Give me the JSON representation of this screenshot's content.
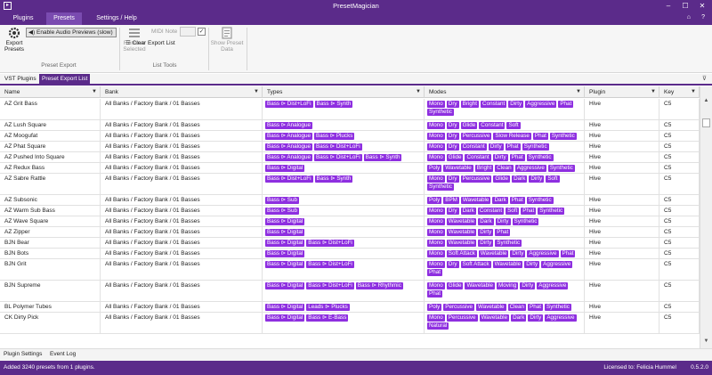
{
  "window": {
    "title": "PresetMagician",
    "app_icon": "pm-logo-icon",
    "controls": [
      "minimize-icon",
      "maximize-icon",
      "close-icon"
    ]
  },
  "menu": {
    "items": [
      "Plugins",
      "Presets",
      "Settings / Help"
    ],
    "active": "Presets",
    "right_icons": [
      "notification-icon",
      "help-icon"
    ]
  },
  "ribbon": {
    "export_presets": "Export\nPresets",
    "enable_previews": "Enable Audio Previews (slow)",
    "group_export": "Preset Export",
    "remove_selected": "Remove\nSelected",
    "midi_note_label": "MIDI Note",
    "midi_note_value": "",
    "clear_export_list": "Clear Export List",
    "group_list_tools": "List Tools",
    "show_preset_data": "Show Preset\nData"
  },
  "tabs": [
    "VST Plugins",
    "Preset Export List"
  ],
  "active_tab": "Preset Export List",
  "columns": [
    "Name",
    "Bank",
    "Types",
    "Modes",
    "Plugin",
    "Key"
  ],
  "rows": [
    {
      "name": "AZ Grit Bass",
      "bank": "All Banks / Factory Bank / 01 Basses",
      "types": [
        "Bass ⊳ Dist+LoFi",
        "Bass ⊳ Synth"
      ],
      "modes": [
        "Mono",
        "Dry",
        "Bright",
        "Constant",
        "Dirty",
        "Aggressive",
        "Phat",
        "Synthetic"
      ],
      "plugin": "Hive",
      "key": "C5"
    },
    {
      "name": "AZ Lush Square",
      "bank": "All Banks / Factory Bank / 01 Basses",
      "types": [
        "Bass ⊳ Analogue"
      ],
      "modes": [
        "Mono",
        "Dry",
        "Glide",
        "Constant",
        "Soft"
      ],
      "plugin": "Hive",
      "key": "C5"
    },
    {
      "name": "AZ Moogufat",
      "bank": "All Banks / Factory Bank / 01 Basses",
      "types": [
        "Bass ⊳ Analogue",
        "Bass ⊳ Plucks"
      ],
      "modes": [
        "Mono",
        "Dry",
        "Percussive",
        "Slow Release",
        "Phat",
        "Synthetic"
      ],
      "plugin": "Hive",
      "key": "C5"
    },
    {
      "name": "AZ Phat Square",
      "bank": "All Banks / Factory Bank / 01 Basses",
      "types": [
        "Bass ⊳ Analogue",
        "Bass ⊳ Dist+LoFi"
      ],
      "modes": [
        "Mono",
        "Dry",
        "Constant",
        "Dirty",
        "Phat",
        "Synthetic"
      ],
      "plugin": "Hive",
      "key": "C5"
    },
    {
      "name": "AZ Pushed Into Square",
      "bank": "All Banks / Factory Bank / 01 Basses",
      "types": [
        "Bass ⊳ Analogue",
        "Bass ⊳ Dist+LoFi",
        "Bass ⊳ Synth"
      ],
      "modes": [
        "Mono",
        "Glide",
        "Constant",
        "Dirty",
        "Phat",
        "Synthetic"
      ],
      "plugin": "Hive",
      "key": "C5"
    },
    {
      "name": "AZ Redux Bass",
      "bank": "All Banks / Factory Bank / 01 Basses",
      "types": [
        "Bass ⊳ Digital"
      ],
      "modes": [
        "Poly",
        "Wavetable",
        "Bright",
        "Clean",
        "Aggressive",
        "Synthetic"
      ],
      "plugin": "Hive",
      "key": "C5"
    },
    {
      "name": "AZ Sabre Rattle",
      "bank": "All Banks / Factory Bank / 01 Basses",
      "types": [
        "Bass ⊳ Dist+LoFi",
        "Bass ⊳ Synth"
      ],
      "modes": [
        "Mono",
        "Dry",
        "Percussive",
        "Glide",
        "Dark",
        "Dirty",
        "Soft",
        "Synthetic"
      ],
      "plugin": "Hive",
      "key": "C5"
    },
    {
      "name": "AZ Subsonic",
      "bank": "All Banks / Factory Bank / 01 Basses",
      "types": [
        "Bass ⊳ Sub"
      ],
      "modes": [
        "Poly",
        "BPM",
        "Wavetable",
        "Dark",
        "Phat",
        "Synthetic"
      ],
      "plugin": "Hive",
      "key": "C5"
    },
    {
      "name": "AZ Warm Sub Bass",
      "bank": "All Banks / Factory Bank / 01 Basses",
      "types": [
        "Bass ⊳ Sub"
      ],
      "modes": [
        "Mono",
        "Dry",
        "Dark",
        "Constant",
        "Soft",
        "Phat",
        "Synthetic"
      ],
      "plugin": "Hive",
      "key": "C5"
    },
    {
      "name": "AZ Wave Square",
      "bank": "All Banks / Factory Bank / 01 Basses",
      "types": [
        "Bass ⊳ Digital"
      ],
      "modes": [
        "Mono",
        "Wavetable",
        "Dark",
        "Dirty",
        "Synthetic"
      ],
      "plugin": "Hive",
      "key": "C5"
    },
    {
      "name": "AZ Zipper",
      "bank": "All Banks / Factory Bank / 01 Basses",
      "types": [
        "Bass ⊳ Digital"
      ],
      "modes": [
        "Mono",
        "Wavetable",
        "Dirty",
        "Phat"
      ],
      "plugin": "Hive",
      "key": "C5"
    },
    {
      "name": "BJN Bear",
      "bank": "All Banks / Factory Bank / 01 Basses",
      "types": [
        "Bass ⊳ Digital",
        "Bass ⊳ Dist+LoFi"
      ],
      "modes": [
        "Mono",
        "Wavetable",
        "Dirty",
        "Synthetic"
      ],
      "plugin": "Hive",
      "key": "C5"
    },
    {
      "name": "BJN Bots",
      "bank": "All Banks / Factory Bank / 01 Basses",
      "types": [
        "Bass ⊳ Digital"
      ],
      "modes": [
        "Mono",
        "Soft Attack",
        "Wavetable",
        "Dirty",
        "Aggressive",
        "Phat"
      ],
      "plugin": "Hive",
      "key": "C5"
    },
    {
      "name": "BJN Grit",
      "bank": "All Banks / Factory Bank / 01 Basses",
      "types": [
        "Bass ⊳ Digital",
        "Bass ⊳ Dist+LoFi"
      ],
      "modes": [
        "Mono",
        "Dry",
        "Soft Attack",
        "Wavetable",
        "Dirty",
        "Aggressive",
        "Phat"
      ],
      "plugin": "Hive",
      "key": "C5"
    },
    {
      "name": "BJN Supreme",
      "bank": "All Banks / Factory Bank / 01 Basses",
      "types": [
        "Bass ⊳ Digital",
        "Bass ⊳ Dist+LoFi",
        "Bass ⊳ Rhythmic"
      ],
      "modes": [
        "Mono",
        "Glide",
        "Wavetable",
        "Moving",
        "Dirty",
        "Aggressive",
        "Phat"
      ],
      "plugin": "Hive",
      "key": "C5"
    },
    {
      "name": "BL Polymer Tubes",
      "bank": "All Banks / Factory Bank / 01 Basses",
      "types": [
        "Bass ⊳ Digital",
        "Leads ⊳ Plucks"
      ],
      "modes": [
        "Poly",
        "Percussive",
        "Wavetable",
        "Clean",
        "Phat",
        "Synthetic"
      ],
      "plugin": "Hive",
      "key": "C5"
    },
    {
      "name": "CK Dirty Pick",
      "bank": "All Banks / Factory Bank / 01 Basses",
      "types": [
        "Bass ⊳ Digital",
        "Bass ⊳ E-Bass"
      ],
      "modes": [
        "Mono",
        "Percussive",
        "Wavetable",
        "Dark",
        "Dirty",
        "Aggressive",
        "Natural"
      ],
      "plugin": "Hive",
      "key": "C5"
    }
  ],
  "bottom_tabs": [
    "Plugin Settings",
    "Event Log"
  ],
  "status": {
    "message": "Added 3240 presets from 1 plugins.",
    "license": "Licensed to: Felicia Hummel",
    "version": "0.5.2.0"
  }
}
